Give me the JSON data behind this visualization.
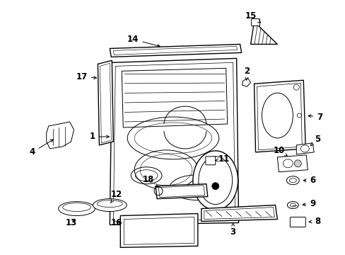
{
  "background_color": "#ffffff",
  "line_color": "#000000",
  "figsize": [
    4.89,
    3.6
  ],
  "dpi": 100,
  "label_fontsize": 8.5,
  "lw_main": 1.0,
  "lw_thin": 0.7,
  "lw_detail": 0.5
}
